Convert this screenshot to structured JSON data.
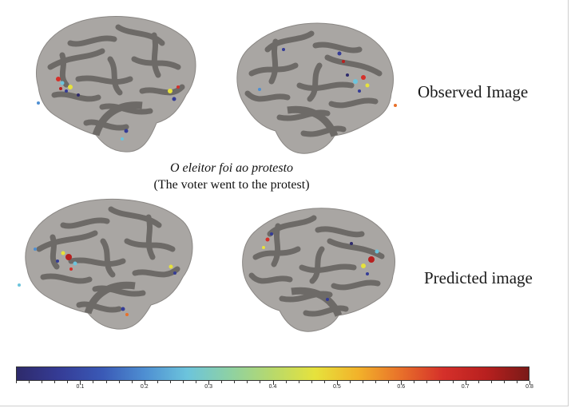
{
  "labels": {
    "observed": "Observed Image",
    "predicted": "Predicted image"
  },
  "sentence": {
    "portuguese": "O eleitor foi ao protesto",
    "english": "(The voter went to the protest)"
  },
  "colorbar": {
    "min": 0,
    "max": 0.8,
    "tick_labels": [
      "0.1",
      "0.2",
      "0.3",
      "0.4",
      "0.5",
      "0.6",
      "0.7",
      "0.8"
    ],
    "tick_values": [
      0.1,
      0.2,
      0.3,
      0.4,
      0.5,
      0.6,
      0.7,
      0.8
    ],
    "colors": [
      "#2e2a6b",
      "#353c96",
      "#3a59b6",
      "#4e8fd2",
      "#6cc4dc",
      "#8ed1a3",
      "#b8d96b",
      "#e6e23c",
      "#f2b22a",
      "#e8702a",
      "#d5302a",
      "#b8201f",
      "#7a1a17"
    ]
  },
  "surface_colors": {
    "gyri": "#a9a6a3",
    "sulci": "#6d6a67"
  }
}
